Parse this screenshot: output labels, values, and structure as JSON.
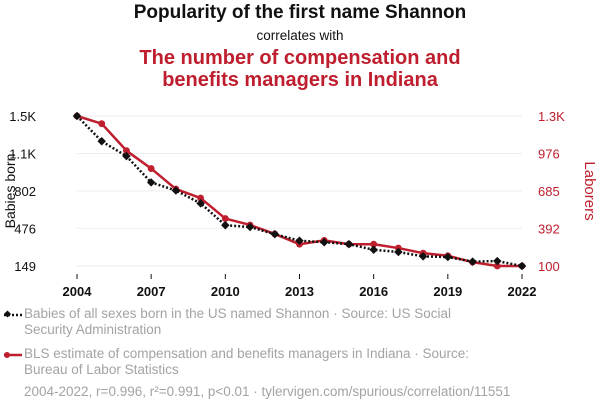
{
  "header": {
    "title": "Popularity of the first name Shannon",
    "correlates": "correlates with",
    "title2_line1": "The number of compensation and",
    "title2_line2": "benefits managers in Indiana"
  },
  "colors": {
    "series1": "#111111",
    "series2": "#be1e2d",
    "grid": "#eeeeee",
    "legend_text": "#a3a3a3"
  },
  "legend": {
    "item1_line1": "Babies of all sexes born in the US named Shannon · Source: US Social",
    "item1_line2": "Security Administration",
    "item2_line1": "BLS estimate of compensation and benefits managers in Indiana · Source:",
    "item2_line2": "Bureau of Labor Statistics"
  },
  "footer": "2004-2022, r=0.996, r²=0.991, p<0.01 · tylervigen.com/spurious/correlation/11551",
  "chart_data": {
    "type": "line",
    "x": [
      2004,
      2005,
      2006,
      2007,
      2008,
      2009,
      2010,
      2011,
      2012,
      2013,
      2014,
      2015,
      2016,
      2017,
      2018,
      2019,
      2020,
      2021,
      2022
    ],
    "x_ticks": [
      2004,
      2007,
      2010,
      2013,
      2016,
      2019,
      2022
    ],
    "grid": true,
    "series": [
      {
        "name": "Babies of all sexes born in the US named Shannon",
        "axis": "left",
        "ylabel": "Babies born",
        "ylim": [
          149,
          1454
        ],
        "ticks": [
          {
            "v": 1454,
            "t": "1.5K"
          },
          {
            "v": 1128,
            "t": "1.1K"
          },
          {
            "v": 802,
            "t": "802"
          },
          {
            "v": 476,
            "t": "476"
          },
          {
            "v": 149,
            "t": "149"
          }
        ],
        "values": [
          1454,
          1234,
          1105,
          876,
          806,
          694,
          504,
          488,
          426,
          369,
          356,
          339,
          290,
          271,
          233,
          227,
          187,
          192,
          149
        ],
        "line_style": "dotted",
        "marker": "diamond"
      },
      {
        "name": "BLS estimate of compensation and benefits managers in Indiana",
        "axis": "right",
        "ylabel": "Laborers",
        "ylim": [
          100,
          1270
        ],
        "ticks": [
          {
            "v": 1270,
            "t": "1.3K"
          },
          {
            "v": 976,
            "t": "976"
          },
          {
            "v": 685,
            "t": "685"
          },
          {
            "v": 392,
            "t": "392"
          },
          {
            "v": 100,
            "t": "100"
          }
        ],
        "values": [
          1270,
          1210,
          1000,
          860,
          700,
          630,
          470,
          420,
          350,
          270,
          300,
          270,
          270,
          240,
          200,
          180,
          130,
          100,
          100
        ],
        "line_style": "solid",
        "marker": "circle"
      }
    ]
  }
}
